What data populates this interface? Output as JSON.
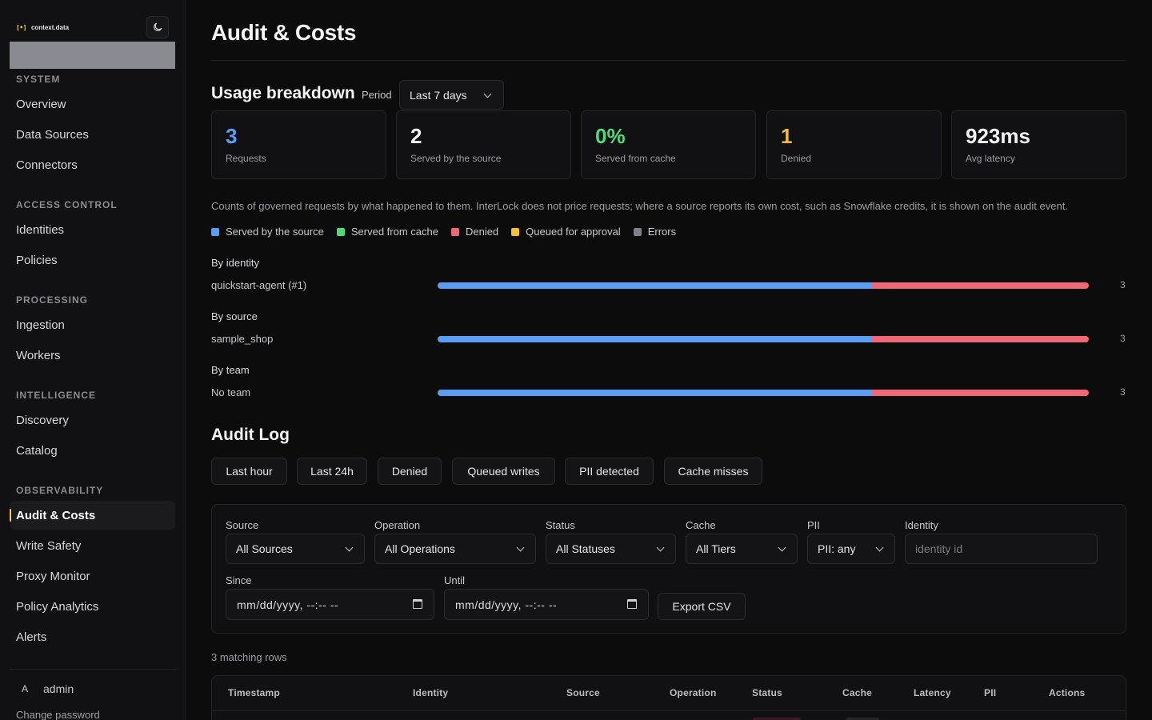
{
  "brand": {
    "mark": "[•]",
    "name": "context.data"
  },
  "sidebar": {
    "sections": [
      {
        "title": "SYSTEM",
        "items": [
          "Overview",
          "Data Sources",
          "Connectors"
        ]
      },
      {
        "title": "ACCESS CONTROL",
        "items": [
          "Identities",
          "Policies"
        ]
      },
      {
        "title": "PROCESSING",
        "items": [
          "Ingestion",
          "Workers"
        ]
      },
      {
        "title": "INTELLIGENCE",
        "items": [
          "Discovery",
          "Catalog"
        ]
      },
      {
        "title": "OBSERVABILITY",
        "items": [
          "Audit & Costs",
          "Write Safety",
          "Proxy Monitor",
          "Policy Analytics",
          "Alerts"
        ]
      }
    ],
    "active": "Audit & Costs",
    "user": {
      "avatar": "A",
      "name": "admin"
    },
    "change_password": "Change password"
  },
  "page": {
    "title": "Audit & Costs"
  },
  "usage": {
    "title": "Usage breakdown",
    "period_label": "Period",
    "period_value": "Last 7 days",
    "stats": [
      {
        "value": "3",
        "label": "Requests",
        "color": "#5b9cf5"
      },
      {
        "value": "2",
        "label": "Served by the source",
        "color": "#f2f2f4"
      },
      {
        "value": "0%",
        "label": "Served from cache",
        "color": "#4fd97a"
      },
      {
        "value": "1",
        "label": "Denied",
        "color": "#f5b93a"
      },
      {
        "value": "923ms",
        "label": "Avg latency",
        "color": "#f2f2f4"
      }
    ],
    "description": "Counts of governed requests by what happened to them. InterLock does not price requests; where a source reports its own cost, such as Snowflake credits, it is shown on the audit event.",
    "legend": [
      {
        "label": "Served by the source",
        "color": "#5b9cf5"
      },
      {
        "label": "Served from cache",
        "color": "#4fd97a"
      },
      {
        "label": "Denied",
        "color": "#f06878"
      },
      {
        "label": "Queued for approval",
        "color": "#f5c032"
      },
      {
        "label": "Errors",
        "color": "#7f8088"
      }
    ],
    "groups": [
      {
        "title": "By identity",
        "row": "quickstart-agent (#1)",
        "served": 2,
        "denied": 1,
        "count": "3"
      },
      {
        "title": "By source",
        "row": "sample_shop",
        "served": 2,
        "denied": 1,
        "count": "3"
      },
      {
        "title": "By team",
        "row": "No team",
        "served": 2,
        "denied": 1,
        "count": "3"
      }
    ]
  },
  "audit": {
    "title": "Audit Log",
    "chips": [
      "Last hour",
      "Last 24h",
      "Denied",
      "Queued writes",
      "PII detected",
      "Cache misses"
    ],
    "filters": {
      "source": {
        "label": "Source",
        "value": "All Sources"
      },
      "operation": {
        "label": "Operation",
        "value": "All Operations"
      },
      "status": {
        "label": "Status",
        "value": "All Statuses"
      },
      "cache": {
        "label": "Cache",
        "value": "All Tiers"
      },
      "pii": {
        "label": "PII",
        "value": "PII: any"
      },
      "identity": {
        "label": "Identity",
        "placeholder": "identity id"
      },
      "since": {
        "label": "Since",
        "value": "mm/dd/yyyy, --:-- --"
      },
      "until": {
        "label": "Until",
        "value": "mm/dd/yyyy, --:-- --"
      },
      "export": "Export CSV"
    },
    "match_count": "3 matching rows",
    "columns": [
      "Timestamp",
      "Identity",
      "Source",
      "Operation",
      "Status",
      "Cache",
      "Latency",
      "PII",
      "Actions"
    ]
  }
}
